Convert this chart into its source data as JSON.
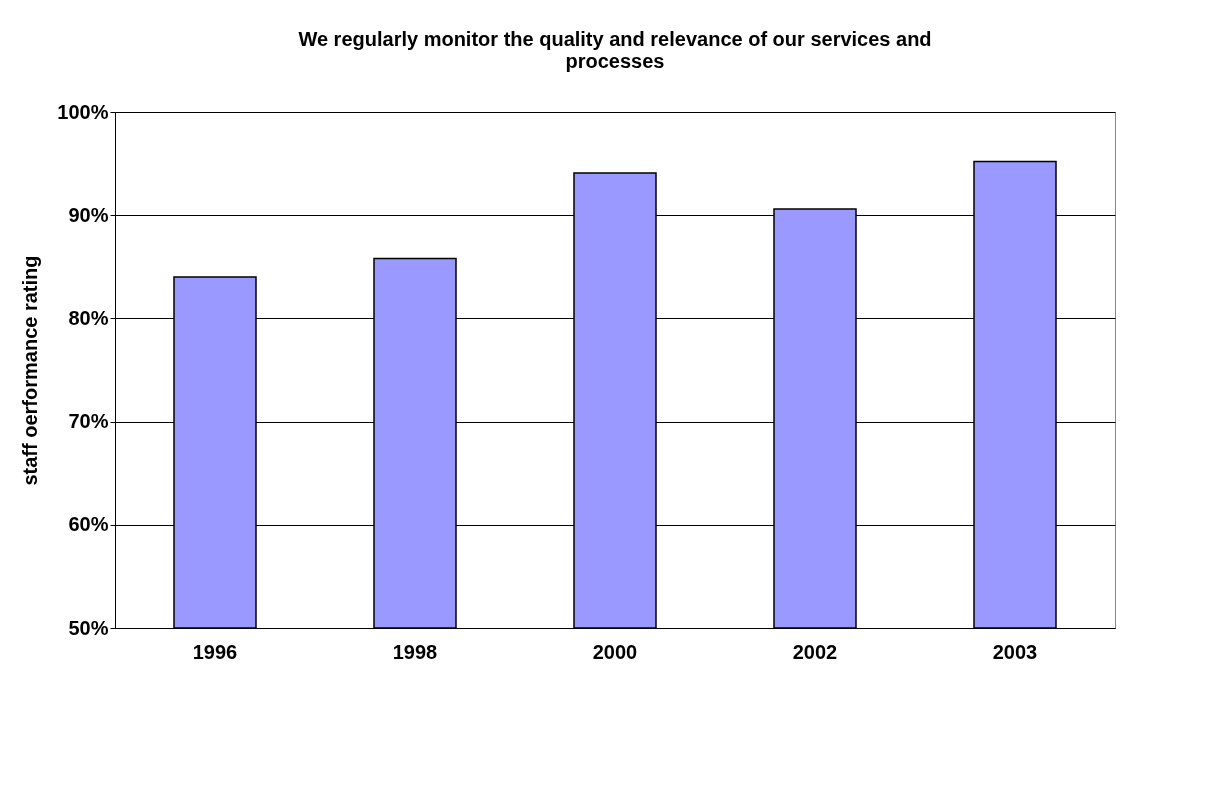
{
  "chart_data": {
    "type": "bar",
    "title": [
      "We regularly monitor the quality and relevance of our services and",
      "processes"
    ],
    "ylabel": "staff oerformance rating",
    "categories": [
      "1996",
      "1998",
      "2000",
      "2002",
      "2003"
    ],
    "values": [
      84.0,
      85.8,
      94.1,
      90.6,
      95.2
    ],
    "color": "#9999ff",
    "ylim": [
      50,
      100
    ],
    "yticks": [
      {
        "value": 50,
        "label": "50%"
      },
      {
        "value": 60,
        "label": "60%"
      },
      {
        "value": 70,
        "label": "70%"
      },
      {
        "value": 80,
        "label": "80%"
      },
      {
        "value": 90,
        "label": "90%"
      },
      {
        "value": 100,
        "label": "100%"
      }
    ],
    "grid": "y"
  }
}
